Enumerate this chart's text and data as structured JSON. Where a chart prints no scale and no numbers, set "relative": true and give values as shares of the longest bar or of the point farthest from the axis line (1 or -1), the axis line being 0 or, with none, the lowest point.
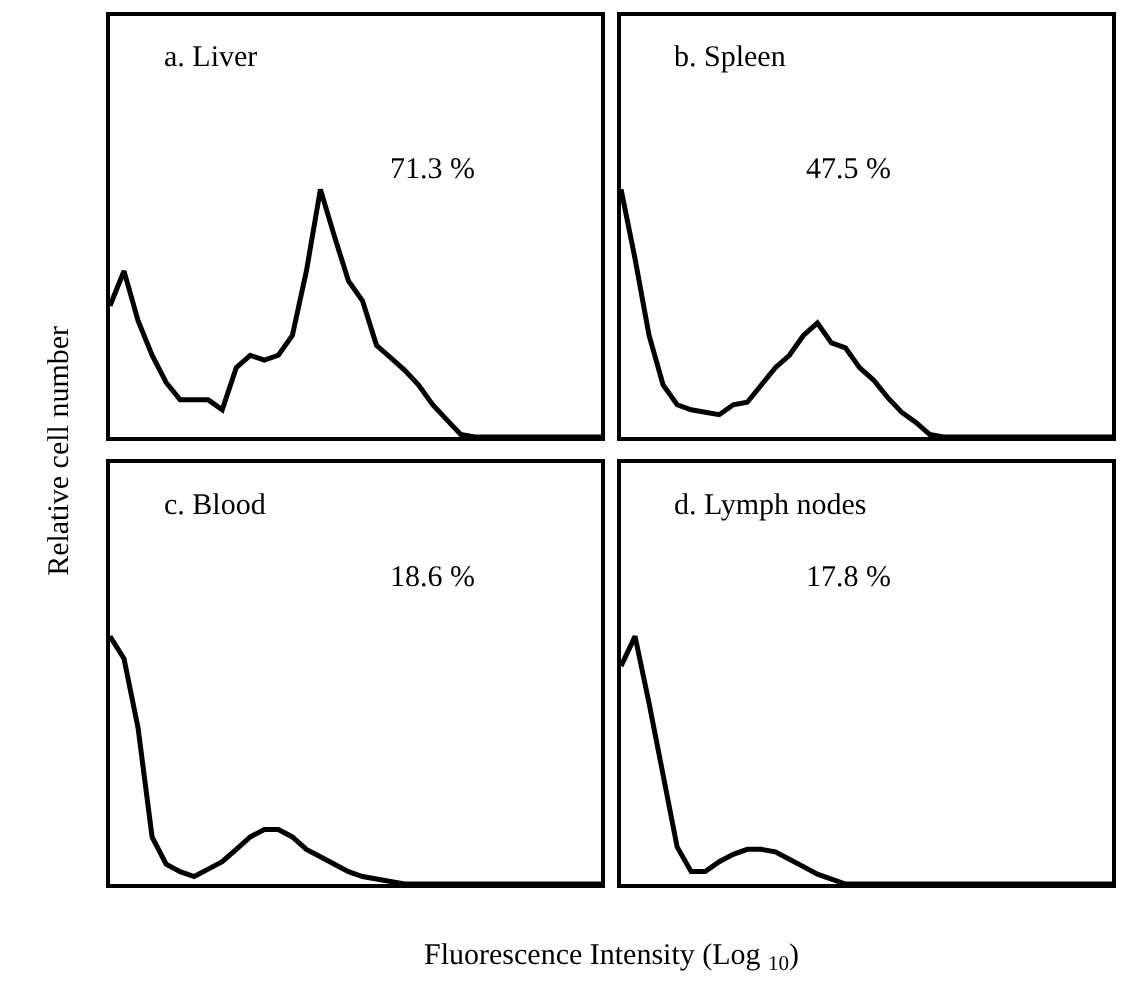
{
  "chart_data": [
    {
      "type": "line",
      "relative": true,
      "title": "a. Liver",
      "xlabel": "Fluorescence Intensity (Log $_{10}$)",
      "ylabel": "Relative cell number",
      "annotations": [
        "71.3 %"
      ],
      "categories": [
        null,
        null,
        null,
        null,
        null,
        null,
        null,
        null,
        null,
        null,
        null,
        null,
        null,
        null,
        null,
        null,
        null,
        null,
        null,
        null,
        null,
        null,
        null,
        null,
        null,
        null,
        null,
        null,
        null,
        null,
        null,
        null,
        null,
        null,
        null,
        null
      ],
      "series": [
        {
          "color": "#000000",
          "values": [
            0.53,
            0.67,
            0.47,
            0.33,
            0.22,
            0.15,
            0.15,
            0.15,
            0.11,
            0.28,
            0.33,
            0.31,
            0.33,
            0.41,
            0.67,
            1.0,
            0.81,
            0.63,
            0.55,
            0.37,
            0.32,
            0.27,
            0.21,
            0.13,
            0.07,
            0.01,
            0,
            0,
            0,
            0,
            0,
            0,
            0,
            0,
            0,
            0
          ]
        }
      ]
    },
    {
      "type": "line",
      "relative": true,
      "title": "b. Spleen",
      "annotations": [
        "47.5 %"
      ],
      "categories": [
        null,
        null,
        null,
        null,
        null,
        null,
        null,
        null,
        null,
        null,
        null,
        null,
        null,
        null,
        null,
        null,
        null,
        null,
        null,
        null,
        null,
        null,
        null,
        null,
        null,
        null,
        null,
        null,
        null,
        null,
        null,
        null,
        null,
        null,
        null,
        null
      ],
      "series": [
        {
          "color": "#000000",
          "values": [
            1.0,
            0.72,
            0.41,
            0.21,
            0.13,
            0.11,
            0.1,
            0.09,
            0.13,
            0.14,
            0.21,
            0.28,
            0.33,
            0.41,
            0.46,
            0.38,
            0.36,
            0.28,
            0.23,
            0.16,
            0.1,
            0.06,
            0.01,
            0,
            0,
            0,
            0,
            0,
            0,
            0,
            0,
            0,
            0,
            0,
            0,
            0
          ]
        }
      ]
    },
    {
      "type": "line",
      "relative": true,
      "title": "c. Blood",
      "annotations": [
        "18.6 %"
      ],
      "categories": [
        null,
        null,
        null,
        null,
        null,
        null,
        null,
        null,
        null,
        null,
        null,
        null,
        null,
        null,
        null,
        null,
        null,
        null,
        null,
        null,
        null,
        null,
        null,
        null,
        null,
        null,
        null,
        null,
        null,
        null,
        null,
        null,
        null,
        null,
        null,
        null
      ],
      "series": [
        {
          "color": "#000000",
          "values": [
            1.0,
            0.91,
            0.63,
            0.19,
            0.08,
            0.05,
            0.03,
            0.06,
            0.09,
            0.14,
            0.19,
            0.22,
            0.22,
            0.19,
            0.14,
            0.11,
            0.08,
            0.05,
            0.03,
            0.02,
            0.01,
            0,
            0,
            0,
            0,
            0,
            0,
            0,
            0,
            0,
            0,
            0,
            0,
            0,
            0,
            0
          ]
        }
      ]
    },
    {
      "type": "line",
      "relative": true,
      "title": "d. Lymph nodes",
      "annotations": [
        "17.8 %"
      ],
      "categories": [
        null,
        null,
        null,
        null,
        null,
        null,
        null,
        null,
        null,
        null,
        null,
        null,
        null,
        null,
        null,
        null,
        null,
        null,
        null,
        null,
        null,
        null,
        null,
        null,
        null,
        null,
        null,
        null,
        null,
        null,
        null,
        null,
        null,
        null,
        null,
        null
      ],
      "series": [
        {
          "color": "#000000",
          "values": [
            0.88,
            1.0,
            0.73,
            0.44,
            0.15,
            0.05,
            0.05,
            0.09,
            0.12,
            0.14,
            0.14,
            0.13,
            0.1,
            0.07,
            0.04,
            0.02,
            0,
            0,
            0,
            0,
            0,
            0,
            0,
            0,
            0,
            0,
            0,
            0,
            0,
            0,
            0,
            0,
            0,
            0,
            0,
            0
          ]
        }
      ]
    }
  ]
}
